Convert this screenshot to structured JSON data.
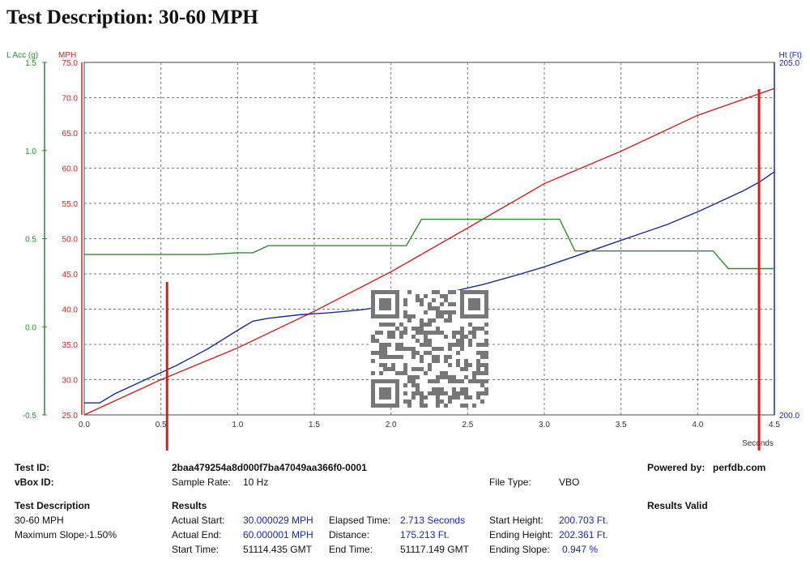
{
  "title": "Test Description: 30-60 MPH",
  "chart_data": {
    "type": "line",
    "x_axis": {
      "unit_label": "Seconds",
      "range": [
        0.0,
        4.5
      ],
      "ticks": [
        "0.0",
        "0.5",
        "1.0",
        "1.5",
        "2.0",
        "2.5",
        "3.0",
        "3.5",
        "4.0",
        "4.5"
      ]
    },
    "axes": {
      "lacc": {
        "label": "L Acc (g)",
        "color": "#2e8b2e",
        "range": [
          -0.5,
          1.5
        ],
        "ticks": [
          "-0.5",
          "0.0",
          "0.5",
          "1.0",
          "1.5"
        ]
      },
      "mph": {
        "label": "MPH",
        "color": "#cc2222",
        "range": [
          25.0,
          75.0
        ],
        "ticks": [
          "25.0",
          "30.0",
          "35.0",
          "40.0",
          "45.0",
          "50.0",
          "55.0",
          "60.0",
          "65.0",
          "70.0",
          "75.0"
        ]
      },
      "ht": {
        "label": "Ht (Ft)",
        "color": "#1a2a9a",
        "range": [
          200.0,
          205.0
        ],
        "ticks": [
          "200.0",
          "205.0"
        ]
      }
    },
    "grid": true,
    "series": [
      {
        "axis": "mph",
        "color": "#cc2222",
        "x": [
          0.0,
          0.5,
          1.0,
          1.5,
          2.0,
          2.5,
          3.0,
          3.25,
          3.5,
          4.0,
          4.5
        ],
        "y": [
          25.0,
          30.0,
          34.5,
          39.7,
          45.3,
          51.5,
          57.8,
          60.1,
          62.4,
          67.5,
          71.3
        ]
      },
      {
        "axis": "ht",
        "color": "#1a2a9a",
        "x": [
          0.0,
          0.1,
          0.2,
          0.4,
          0.6,
          0.8,
          1.0,
          1.1,
          1.2,
          1.4,
          1.6,
          1.8,
          2.0,
          2.2,
          2.4,
          2.6,
          2.8,
          3.0,
          3.2,
          3.4,
          3.6,
          3.8,
          4.0,
          4.1,
          4.2,
          4.3,
          4.4,
          4.5
        ],
        "y": [
          200.17,
          200.17,
          200.3,
          200.5,
          200.7,
          200.93,
          201.2,
          201.33,
          201.37,
          201.42,
          201.45,
          201.49,
          201.55,
          201.65,
          201.75,
          201.85,
          201.97,
          202.1,
          202.25,
          202.4,
          202.55,
          202.7,
          202.88,
          202.98,
          203.08,
          203.18,
          203.3,
          203.45
        ]
      },
      {
        "axis": "lacc",
        "color": "#2e8b2e",
        "x": [
          0.0,
          0.2,
          0.4,
          0.6,
          0.8,
          1.0,
          1.1,
          1.2,
          1.5,
          2.1,
          2.2,
          3.1,
          3.2,
          4.1,
          4.2,
          4.5
        ],
        "y": [
          0.41,
          0.41,
          0.41,
          0.41,
          0.41,
          0.42,
          0.42,
          0.46,
          0.46,
          0.46,
          0.61,
          0.61,
          0.43,
          0.43,
          0.33,
          0.33
        ]
      }
    ],
    "markers": [
      {
        "x": 0.54,
        "color": "#cc2222"
      },
      {
        "x": 4.4,
        "color": "#cc2222"
      }
    ]
  },
  "info": {
    "test_id_label": "Test ID:",
    "test_id_value": "2baa479254a8d000f7ba47049aa366f0-0001",
    "vbox_id_label": "vBox ID:",
    "sample_rate_label": "Sample Rate:",
    "sample_rate_value": "10 Hz",
    "file_type_label": "File Type:",
    "file_type_value": "VBO",
    "powered_by_label": "Powered by:",
    "powered_by_value": "perfdb.com",
    "test_description_heading": "Test Description",
    "test_description_value": "30-60 MPH",
    "max_slope_label": "Maximum Slope:",
    "max_slope_value": "-1.50%",
    "results_heading": "Results",
    "results_valid": "Results Valid",
    "actual_start_label": "Actual Start:",
    "actual_start_value": "30.000029 MPH",
    "actual_end_label": "Actual End:",
    "actual_end_value": "60.000001 MPH",
    "start_time_label": "Start Time:",
    "start_time_value": "51114.435 GMT",
    "elapsed_label": "Elapsed Time:",
    "elapsed_value": "2.713 Seconds",
    "distance_label": "Distance:",
    "distance_value": "175.213 Ft.",
    "end_time_label": "End Time:",
    "end_time_value": "51117.149 GMT",
    "start_height_label": "Start Height:",
    "start_height_value": "200.703 Ft.",
    "ending_height_label": "Ending Height:",
    "ending_height_value": "202.361 Ft.",
    "ending_slope_label": "Ending Slope:",
    "ending_slope_value": "0.947 %"
  }
}
